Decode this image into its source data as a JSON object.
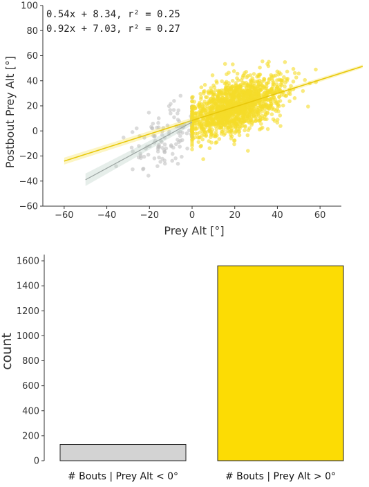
{
  "chart_data": [
    {
      "type": "scatter",
      "xlabel": "Prey Alt [°]",
      "ylabel": "Postbout Prey Alt [°]",
      "xlim": [
        -70,
        70
      ],
      "ylim": [
        -60,
        100
      ],
      "xticks": [
        "−60",
        "−40",
        "−20",
        "0",
        "20",
        "40",
        "60"
      ],
      "yticks": [
        "100",
        "80",
        "60",
        "40",
        "20",
        "0",
        "−20",
        "−40",
        "−60"
      ],
      "grid": false,
      "annotations": [
        {
          "text": "0.54x + 8.34, r² = 0.25",
          "color": "#a08c1a"
        },
        {
          "text": "0.92x + 7.03, r² = 0.27",
          "color": "#777777"
        }
      ],
      "series": [
        {
          "color": "#f5dc2a",
          "fit": {
            "slope": 0.54,
            "intercept": 8.34,
            "x_range": [
              -60,
              80
            ]
          },
          "cloud": {
            "x_mean": 20,
            "x_sd": 11,
            "y_residual_sd": 10,
            "x_min": 0,
            "x_max": 60,
            "n": 1560
          }
        },
        {
          "color": "#bdbdbd",
          "fit": {
            "slope": 0.92,
            "intercept": 7.03,
            "x_range": [
              -50,
              0
            ]
          },
          "cloud": {
            "x_mean": -12,
            "x_sd": 10,
            "y_residual_sd": 12,
            "x_min": -50,
            "x_max": 0,
            "n": 130
          }
        }
      ]
    },
    {
      "type": "bar",
      "categories": [
        "# Bouts | Prey Alt < 0°",
        "# Bouts | Prey Alt > 0°"
      ],
      "values": [
        130,
        1560
      ],
      "colors": [
        "#d3d3d3",
        "#fcdc04"
      ],
      "ylabel": "count",
      "ylim": [
        0,
        1650
      ],
      "yticks": [
        "0",
        "200",
        "400",
        "600",
        "800",
        "1000",
        "1200",
        "1400",
        "1600"
      ],
      "grid": false
    }
  ]
}
